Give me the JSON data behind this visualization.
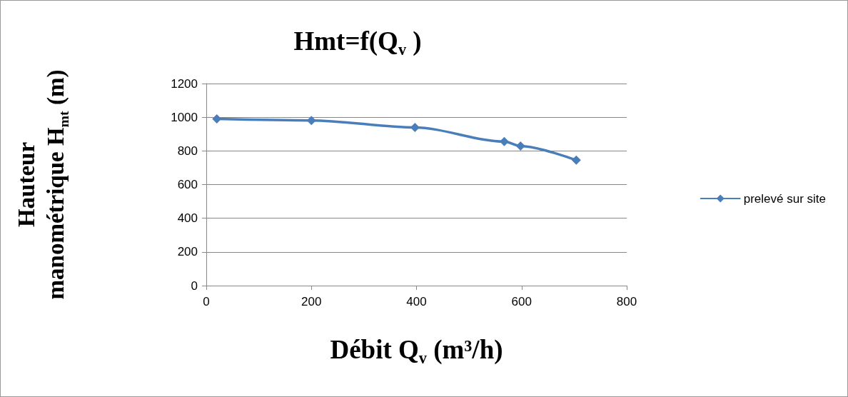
{
  "chart_data": {
    "type": "line",
    "title": "Hmt=f(Q$_{v}$ )",
    "xlabel": "Débit Q$_{v}$ (m³/h)",
    "ylabel": "Hauteur manométrique H$_{mt}$ (m)",
    "x": [
      20,
      200,
      397,
      567,
      598,
      704
    ],
    "series": [
      {
        "name": "prelevé sur site",
        "color": "#4a7ebb",
        "values": [
          990,
          981,
          939,
          855,
          829,
          745
        ]
      }
    ],
    "xlim": [
      0,
      800
    ],
    "xticks": [
      0,
      200,
      400,
      600,
      800
    ],
    "ylim": [
      0,
      1200
    ],
    "yticks": [
      0,
      200,
      400,
      600,
      800,
      1000,
      1200
    ],
    "grid": "y",
    "legend": "right",
    "marker": "diamond",
    "line_style": "solid"
  }
}
